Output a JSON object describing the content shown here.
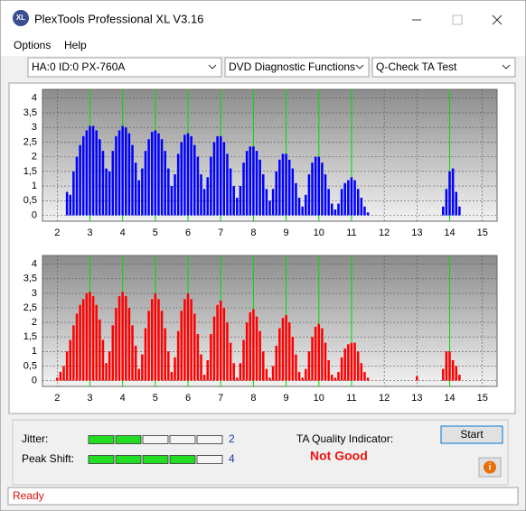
{
  "window": {
    "title": "PlexTools Professional XL V3.16"
  },
  "menu": [
    "Options",
    "Help"
  ],
  "selectors": [
    "HA:0 ID:0  PX-760A",
    "DVD Diagnostic Functions",
    "Q-Check TA Test"
  ],
  "chart_data": [
    {
      "type": "bar",
      "color": "#0000ff",
      "marker_color": "#00dd00",
      "grid": true,
      "xlim": [
        1.55,
        15.45
      ],
      "xticks": [
        2,
        3,
        4,
        5,
        6,
        7,
        8,
        9,
        10,
        11,
        12,
        13,
        14,
        15
      ],
      "ylim": [
        -0.2,
        4.3
      ],
      "yticks": [
        0,
        {
          "value": 0.5,
          "label": "0,5"
        },
        1,
        {
          "value": 1.5,
          "label": "1,5"
        },
        2,
        {
          "value": 2.5,
          "label": "2,5"
        },
        3,
        {
          "value": 3.5,
          "label": "3,5"
        },
        4
      ],
      "markers": [
        3,
        4,
        5,
        6,
        7,
        8,
        9,
        10,
        11,
        14
      ],
      "x": [
        2.3,
        2.4,
        2.5,
        2.6,
        2.7,
        2.8,
        2.9,
        3.0,
        3.1,
        3.2,
        3.3,
        3.4,
        3.5,
        3.6,
        3.7,
        3.8,
        3.9,
        4.0,
        4.1,
        4.2,
        4.3,
        4.4,
        4.5,
        4.6,
        4.7,
        4.8,
        4.9,
        5.0,
        5.1,
        5.2,
        5.3,
        5.4,
        5.5,
        5.6,
        5.7,
        5.8,
        5.9,
        6.0,
        6.1,
        6.2,
        6.3,
        6.4,
        6.5,
        6.6,
        6.7,
        6.8,
        6.9,
        7.0,
        7.1,
        7.2,
        7.3,
        7.4,
        7.5,
        7.6,
        7.7,
        7.8,
        7.9,
        8.0,
        8.1,
        8.2,
        8.3,
        8.4,
        8.5,
        8.6,
        8.7,
        8.8,
        8.9,
        9.0,
        9.1,
        9.2,
        9.3,
        9.4,
        9.5,
        9.6,
        9.7,
        9.8,
        9.9,
        10.0,
        10.1,
        10.2,
        10.3,
        10.4,
        10.5,
        10.6,
        10.7,
        10.8,
        10.9,
        11.0,
        11.1,
        11.2,
        11.3,
        11.4,
        11.5,
        13.8,
        13.9,
        14.0,
        14.1,
        14.2,
        14.3
      ],
      "values": [
        0.8,
        0.7,
        1.5,
        2.0,
        2.4,
        2.7,
        2.9,
        3.05,
        3.05,
        2.9,
        2.6,
        2.2,
        1.6,
        1.5,
        2.2,
        2.7,
        2.9,
        3.05,
        3.0,
        2.8,
        2.4,
        1.8,
        1.2,
        1.6,
        2.2,
        2.6,
        2.85,
        2.9,
        2.8,
        2.6,
        2.2,
        1.6,
        1.0,
        1.4,
        2.1,
        2.5,
        2.75,
        2.8,
        2.7,
        2.4,
        2.0,
        1.4,
        0.9,
        1.3,
        2.0,
        2.5,
        2.7,
        2.7,
        2.5,
        2.1,
        1.6,
        1.0,
        0.6,
        1.0,
        1.8,
        2.2,
        2.35,
        2.35,
        2.2,
        1.9,
        1.4,
        0.9,
        0.5,
        0.9,
        1.5,
        1.9,
        2.1,
        2.1,
        1.9,
        1.6,
        1.1,
        0.6,
        0.3,
        0.7,
        1.4,
        1.8,
        2.0,
        2.0,
        1.8,
        1.4,
        0.9,
        0.4,
        0.2,
        0.4,
        0.9,
        1.1,
        1.2,
        1.3,
        1.2,
        0.9,
        0.6,
        0.3,
        0.1,
        0.3,
        0.9,
        1.5,
        1.6,
        0.8,
        0.3
      ]
    },
    {
      "type": "bar",
      "color": "#ff0000",
      "marker_color": "#00dd00",
      "grid": true,
      "xlim": [
        1.55,
        15.45
      ],
      "xticks": [
        2,
        3,
        4,
        5,
        6,
        7,
        8,
        9,
        10,
        11,
        12,
        13,
        14,
        15
      ],
      "ylim": [
        -0.2,
        4.3
      ],
      "yticks": [
        0,
        {
          "value": 0.5,
          "label": "0,5"
        },
        1,
        {
          "value": 1.5,
          "label": "1,5"
        },
        2,
        {
          "value": 2.5,
          "label": "2,5"
        },
        3,
        {
          "value": 3.5,
          "label": "3,5"
        },
        4
      ],
      "markers": [
        3,
        4,
        5,
        6,
        7,
        8,
        9,
        10,
        11,
        14
      ],
      "x": [
        2.0,
        2.1,
        2.2,
        2.3,
        2.4,
        2.5,
        2.6,
        2.7,
        2.8,
        2.9,
        3.0,
        3.1,
        3.2,
        3.3,
        3.4,
        3.5,
        3.6,
        3.7,
        3.8,
        3.9,
        4.0,
        4.1,
        4.2,
        4.3,
        4.4,
        4.5,
        4.6,
        4.7,
        4.8,
        4.9,
        5.0,
        5.1,
        5.2,
        5.3,
        5.4,
        5.5,
        5.6,
        5.7,
        5.8,
        5.9,
        6.0,
        6.1,
        6.2,
        6.3,
        6.4,
        6.5,
        6.6,
        6.7,
        6.8,
        6.9,
        7.0,
        7.1,
        7.2,
        7.3,
        7.4,
        7.5,
        7.6,
        7.7,
        7.8,
        7.9,
        8.0,
        8.1,
        8.2,
        8.3,
        8.4,
        8.5,
        8.6,
        8.7,
        8.8,
        8.9,
        9.0,
        9.1,
        9.2,
        9.3,
        9.4,
        9.5,
        9.6,
        9.7,
        9.8,
        9.9,
        10.0,
        10.1,
        10.2,
        10.3,
        10.4,
        10.5,
        10.6,
        10.7,
        10.8,
        10.9,
        11.0,
        11.1,
        11.2,
        11.3,
        11.4,
        11.5,
        13.0,
        13.8,
        13.9,
        14.0,
        14.1,
        14.2,
        14.3
      ],
      "values": [
        0.1,
        0.3,
        0.5,
        1.0,
        1.4,
        1.9,
        2.3,
        2.6,
        2.8,
        3.0,
        3.05,
        2.9,
        2.6,
        2.1,
        1.4,
        0.6,
        1.0,
        1.9,
        2.5,
        2.9,
        3.05,
        2.9,
        2.5,
        1.9,
        1.2,
        0.4,
        0.9,
        1.8,
        2.4,
        2.8,
        3.0,
        2.8,
        2.4,
        1.8,
        1.0,
        0.3,
        0.8,
        1.7,
        2.4,
        2.8,
        3.0,
        2.8,
        2.3,
        1.6,
        0.9,
        0.2,
        0.7,
        1.6,
        2.2,
        2.6,
        2.75,
        2.5,
        2.0,
        1.3,
        0.6,
        0.1,
        0.6,
        1.4,
        2.0,
        2.35,
        2.45,
        2.2,
        1.7,
        1.0,
        0.4,
        0.1,
        0.5,
        1.2,
        1.8,
        2.15,
        2.25,
        2.0,
        1.5,
        0.9,
        0.3,
        0.1,
        0.4,
        1.0,
        1.5,
        1.85,
        1.95,
        1.8,
        1.3,
        0.7,
        0.2,
        0.1,
        0.3,
        0.8,
        1.1,
        1.25,
        1.3,
        1.3,
        1.0,
        0.6,
        0.3,
        0.1,
        0.15,
        0.4,
        1.0,
        1.0,
        0.7,
        0.5,
        0.2
      ]
    }
  ],
  "indicators": [
    {
      "label": "Jitter:",
      "value": 2,
      "max": 5,
      "color": "#22dd22"
    },
    {
      "label": "Peak Shift:",
      "value": 4,
      "max": 5,
      "color": "#22dd22"
    }
  ],
  "quality": {
    "label": "TA Quality Indicator:",
    "result": "Not Good"
  },
  "button": "Start",
  "status": "Ready"
}
